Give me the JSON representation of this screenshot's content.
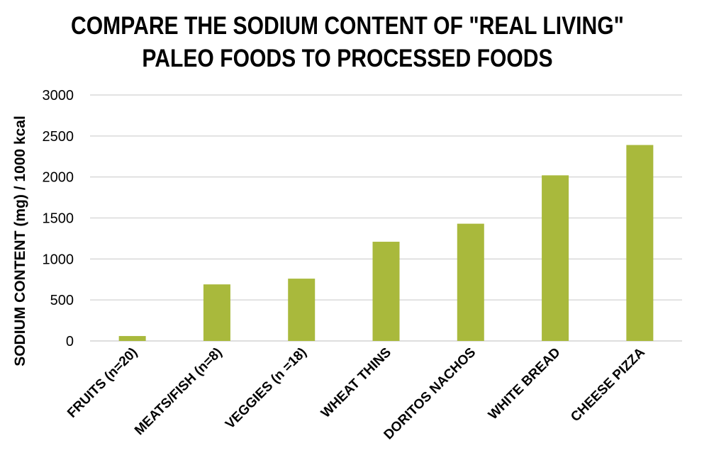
{
  "chart_data": {
    "type": "bar",
    "title_lines": [
      "COMPARE THE SODIUM CONTENT OF \"REAL LIVING\"",
      "PALEO FOODS TO PROCESSED FOODS"
    ],
    "xlabel": "",
    "ylabel": "SODIUM CONTENT (mg) / 1000 kcal",
    "ylim": [
      0,
      3000
    ],
    "yticks": [
      0,
      500,
      1000,
      1500,
      2000,
      2500,
      3000
    ],
    "grid": true,
    "bar_color": "#a9b93c",
    "gridline_color": "#d9d9d9",
    "categories": [
      "FRUITS (n=20)",
      "MEATS/FISH (n=8)",
      "VEGGIES (n =18)",
      "WHEAT THINS",
      "DORITOS NACHOS",
      "WHITE BREAD",
      "CHEESE PIZZA"
    ],
    "values": [
      60,
      690,
      760,
      1210,
      1430,
      2020,
      2390
    ]
  }
}
